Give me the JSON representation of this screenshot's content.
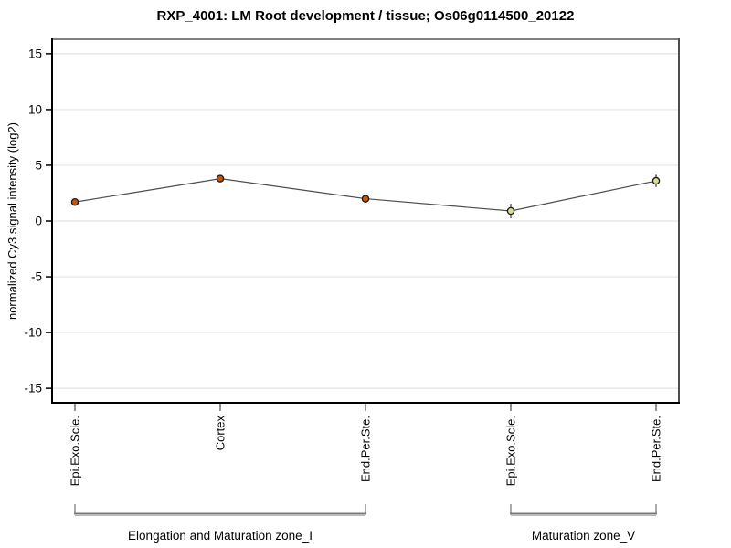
{
  "chart_data": {
    "type": "line",
    "title": "RXP_4001: LM Root development / tissue; Os06g0114500_20122",
    "ylabel": "normalized Cy3 signal intensity (log2)",
    "xlabel": "",
    "ylim": [
      -16.3,
      16.3
    ],
    "yticks": [
      15,
      10,
      5,
      0,
      -5,
      -10,
      -15
    ],
    "grid": true,
    "legend": "none",
    "categories": [
      "Epi.Exo.Scle.",
      "Cortex",
      "End.Per.Ste.",
      "Epi.Exo.Scle.",
      "End.Per.Ste."
    ],
    "values": [
      1.7,
      3.8,
      2.0,
      0.9,
      3.6
    ],
    "error_bars": [
      0.3,
      0.3,
      0.35,
      0.65,
      0.55
    ],
    "point_colors": [
      "#cc5200",
      "#cc5200",
      "#cc5200",
      "#dbdb8d",
      "#dbdb8d"
    ],
    "point_outline_color": "#1a1a1a",
    "line_color": "#4d4d4d",
    "grid_color": "#e3e3e3",
    "axis_color": "#000000",
    "frame_top_color": "#808080",
    "frame_right_color": "#4d4d4d",
    "bracket_color": "#787878",
    "groups": [
      {
        "label": "Elongation and Maturation zone_I",
        "start": 0,
        "end": 2
      },
      {
        "label": "Maturation zone_V",
        "start": 3,
        "end": 4
      }
    ]
  }
}
